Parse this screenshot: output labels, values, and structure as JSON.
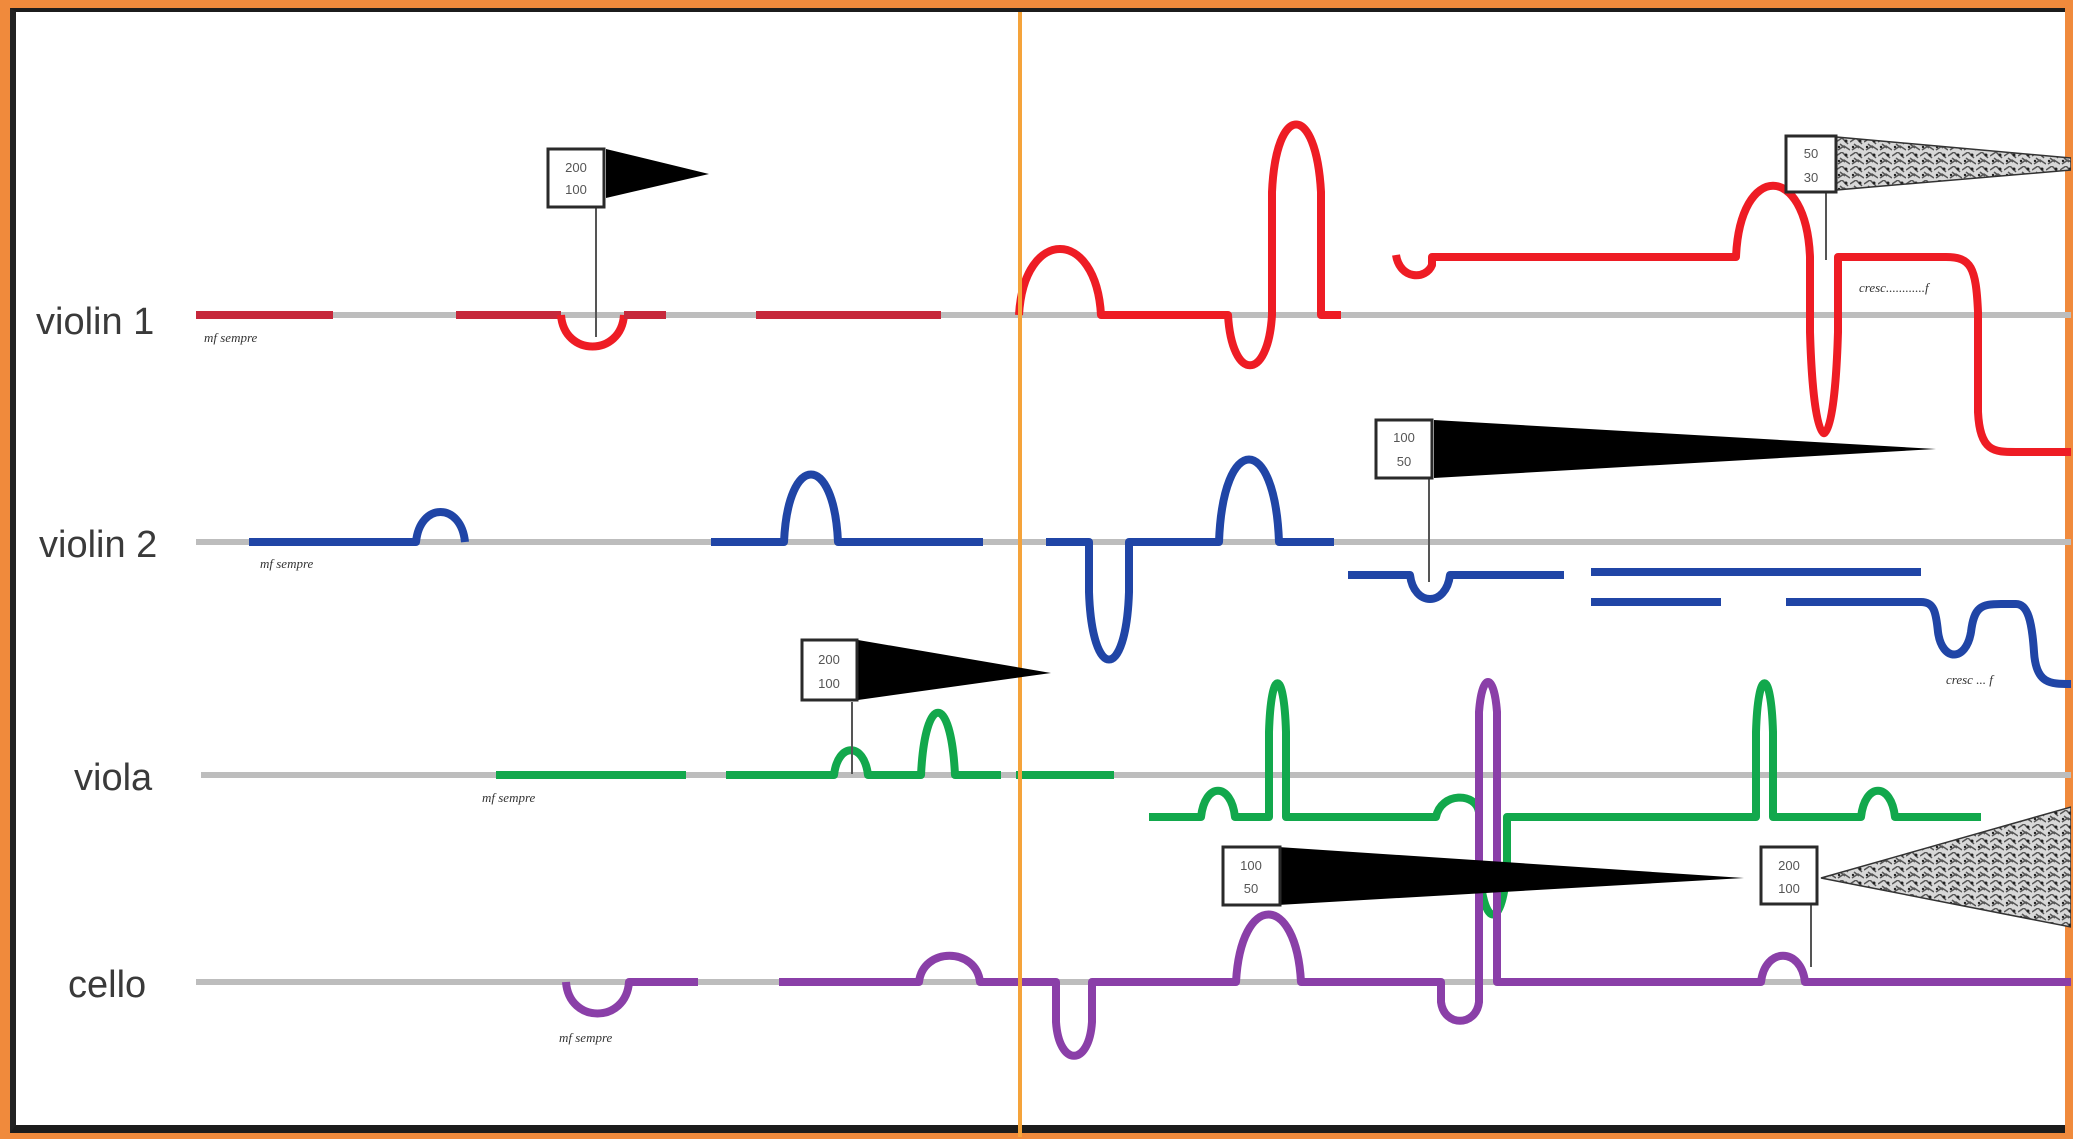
{
  "instruments": [
    {
      "label": "violin 1",
      "color": "#ee1c24"
    },
    {
      "label": "violin 2",
      "color": "#2045a6"
    },
    {
      "label": "viola",
      "color": "#12a84c"
    },
    {
      "label": "cello",
      "color": "#8a3fa8"
    }
  ],
  "annotations": {
    "mf_sempre": "mf sempre",
    "cresc_v1": "cresc............f",
    "cresc_v2": "cresc ... f"
  },
  "dynamic_markers": [
    {
      "top": "200",
      "bottom": "100",
      "shape": "flag"
    },
    {
      "top": "50",
      "bottom": "30",
      "shape": "textured-wedge"
    },
    {
      "top": "100",
      "bottom": "50",
      "shape": "wedge"
    },
    {
      "top": "200",
      "bottom": "100",
      "shape": "wedge"
    },
    {
      "top": "100",
      "bottom": "50",
      "shape": "wedge"
    },
    {
      "top": "200",
      "bottom": "100",
      "shape": "textured-wedge"
    }
  ],
  "playhead_color": "#f5a33a"
}
